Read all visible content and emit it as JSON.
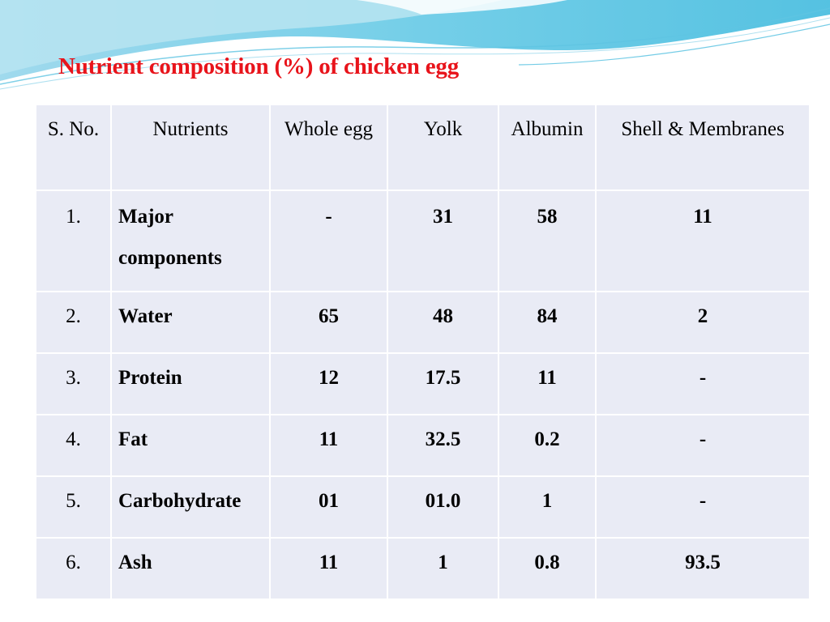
{
  "slide": {
    "title": "Nutrient composition (%) of chicken egg"
  },
  "table": {
    "headers": {
      "sno": "S. No.",
      "nutrients": "Nutrients",
      "whole_egg": "Whole egg",
      "yolk": "Yolk",
      "albumin": "Albumin",
      "shell": "Shell & Membranes"
    },
    "rows": [
      {
        "sno": "1.",
        "name": "Major components",
        "whole_egg": "-",
        "yolk": "31",
        "albumin": "58",
        "shell": "11"
      },
      {
        "sno": "2.",
        "name": "Water",
        "whole_egg": "65",
        "yolk": "48",
        "albumin": "84",
        "shell": "2"
      },
      {
        "sno": "3.",
        "name": "Protein",
        "whole_egg": "12",
        "yolk": "17.5",
        "albumin": "11",
        "shell": "-"
      },
      {
        "sno": "4.",
        "name": "Fat",
        "whole_egg": "11",
        "yolk": "32.5",
        "albumin": "0.2",
        "shell": "-"
      },
      {
        "sno": "5.",
        "name": "Carbohydrate",
        "whole_egg": "01",
        "yolk": "01.0",
        "albumin": "1",
        "shell": "-"
      },
      {
        "sno": "6.",
        "name": "Ash",
        "whole_egg": "11",
        "yolk": "1",
        "albumin": "0.8",
        "shell": "93.5"
      }
    ]
  },
  "colors": {
    "title": "#e8141b",
    "cell_background": "#e9ebf5",
    "wave_primary": "#4fc3e0",
    "wave_light": "#bfe9f4"
  }
}
